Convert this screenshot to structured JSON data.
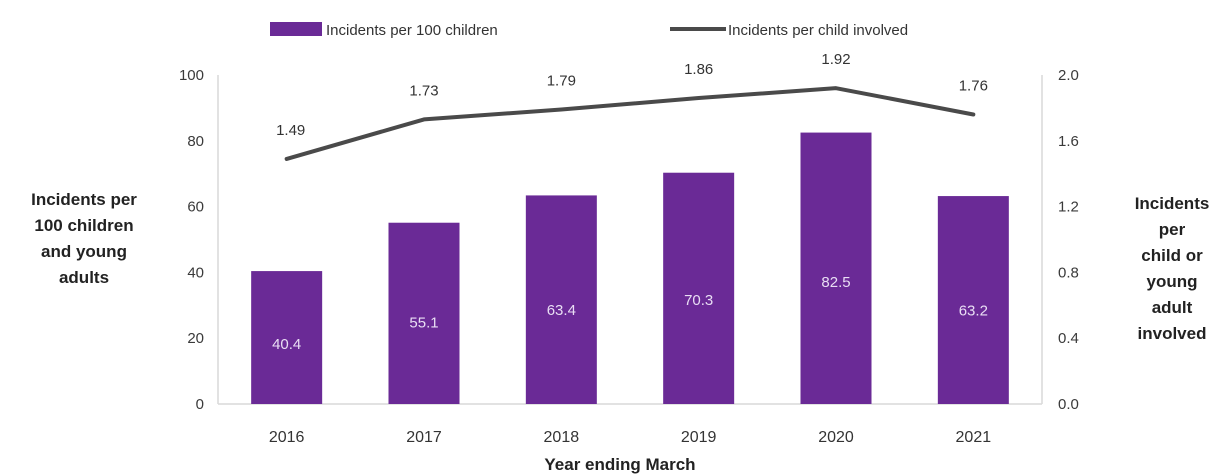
{
  "chart_data": {
    "type": "bar+line",
    "categories": [
      "2016",
      "2017",
      "2018",
      "2019",
      "2020",
      "2021"
    ],
    "xlabel": "Year ending March",
    "ylabel_left_lines": [
      "Incidents per",
      "100 children",
      "and young",
      "adults"
    ],
    "ylabel_right_lines": [
      "Incidents",
      "per",
      "child or",
      "young",
      "adult",
      "involved"
    ],
    "left_axis": {
      "ylim": [
        0,
        100
      ],
      "ticks": [
        "0",
        "20",
        "40",
        "60",
        "80",
        "100"
      ]
    },
    "right_axis": {
      "ylim": [
        0,
        2.0
      ],
      "ticks": [
        "0.0",
        "0.4",
        "0.8",
        "1.2",
        "1.6",
        "2.0"
      ]
    },
    "series": [
      {
        "name": "Incidents per 100 children",
        "type": "bar",
        "axis": "left",
        "values": [
          40.4,
          55.1,
          63.4,
          70.3,
          82.5,
          63.2
        ],
        "labels": [
          "40.4",
          "55.1",
          "63.4",
          "70.3",
          "82.5",
          "63.2"
        ]
      },
      {
        "name": "Incidents per child involved",
        "type": "line",
        "axis": "right",
        "values": [
          1.49,
          1.73,
          1.79,
          1.86,
          1.92,
          1.76
        ],
        "labels": [
          "1.49",
          "1.73",
          "1.79",
          "1.86",
          "1.92",
          "1.76"
        ]
      }
    ],
    "legend_position": "top",
    "grid": false,
    "colors": {
      "bar": "#6a2a96",
      "line": "#4a4a4a",
      "axis": "#d9d9d9"
    }
  }
}
